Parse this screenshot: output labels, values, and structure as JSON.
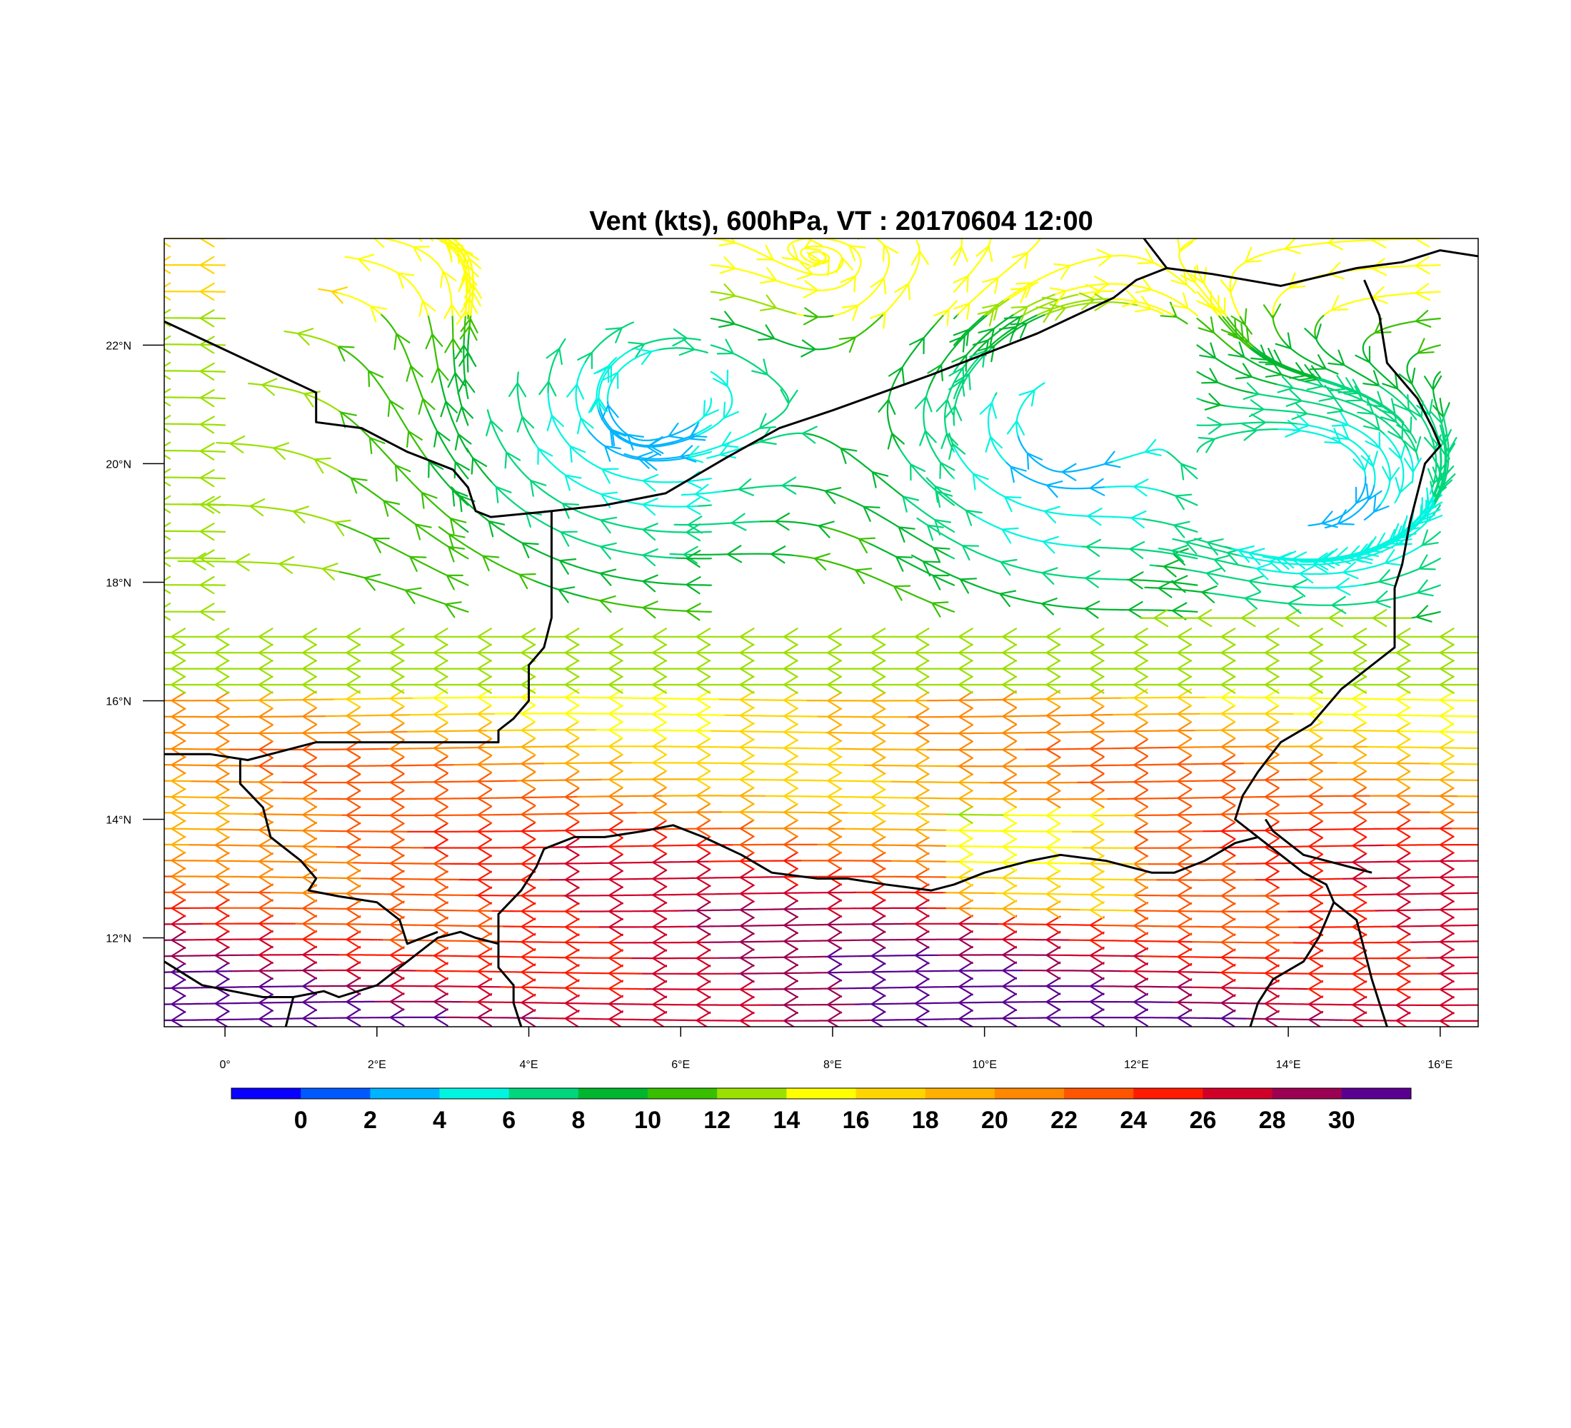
{
  "map": {
    "title": "Vent (kts), 600hPa, VT : 20170604  12:00",
    "lon_range": [
      -0.8,
      16.5
    ],
    "lat_range": [
      10.5,
      23.8
    ],
    "lon_ticks": [
      {
        "value": 0,
        "label": "0°"
      },
      {
        "value": 2,
        "label": "2°E"
      },
      {
        "value": 4,
        "label": "4°E"
      },
      {
        "value": 6,
        "label": "6°E"
      },
      {
        "value": 8,
        "label": "8°E"
      },
      {
        "value": 10,
        "label": "10°E"
      },
      {
        "value": 12,
        "label": "12°E"
      },
      {
        "value": 14,
        "label": "14°E"
      },
      {
        "value": 16,
        "label": "16°E"
      }
    ],
    "lat_ticks": [
      {
        "value": 12,
        "label": "12°N"
      },
      {
        "value": 14,
        "label": "14°N"
      },
      {
        "value": 16,
        "label": "16°N"
      },
      {
        "value": 18,
        "label": "18°N"
      },
      {
        "value": 20,
        "label": "20°N"
      },
      {
        "value": 22,
        "label": "22°N"
      }
    ],
    "colorbar": {
      "colors": [
        "#0a00ff",
        "#0059ff",
        "#00b4ff",
        "#00f5e0",
        "#00d67c",
        "#00b62e",
        "#38c000",
        "#9ae000",
        "#ffff00",
        "#ffd500",
        "#ffb000",
        "#ff8800",
        "#ff5500",
        "#ff1a00",
        "#d10029",
        "#9c0052",
        "#5a0090"
      ],
      "labels": [
        "0",
        "2",
        "4",
        "6",
        "8",
        "10",
        "12",
        "14",
        "16",
        "18",
        "20",
        "22",
        "24",
        "26",
        "28",
        "30"
      ]
    },
    "borders": [
      [
        [
          -0.8,
          22.4
        ],
        [
          1.2,
          21.2
        ],
        [
          1.2,
          20.7
        ],
        [
          1.8,
          20.6
        ],
        [
          2.4,
          20.2
        ],
        [
          3.0,
          19.9
        ],
        [
          3.2,
          19.6
        ],
        [
          3.3,
          19.2
        ],
        [
          3.5,
          19.1
        ],
        [
          4.3,
          19.2
        ],
        [
          5.0,
          19.3
        ],
        [
          5.8,
          19.5
        ],
        [
          6.6,
          20.1
        ],
        [
          7.3,
          20.6
        ],
        [
          8.0,
          20.9
        ],
        [
          9.3,
          21.5
        ],
        [
          10.7,
          22.2
        ],
        [
          11.2,
          22.5
        ],
        [
          11.7,
          22.8
        ],
        [
          12.0,
          23.1
        ],
        [
          12.4,
          23.3
        ]
      ],
      [
        [
          12.4,
          23.3
        ],
        [
          12.1,
          23.8
        ]
      ],
      [
        [
          12.4,
          23.3
        ],
        [
          13.0,
          23.2
        ],
        [
          13.9,
          23.0
        ],
        [
          14.9,
          23.3
        ],
        [
          15.5,
          23.4
        ],
        [
          16.0,
          23.6
        ],
        [
          16.5,
          23.5
        ]
      ],
      [
        [
          15.0,
          23.1
        ],
        [
          15.2,
          22.5
        ],
        [
          15.3,
          21.7
        ],
        [
          15.7,
          21.1
        ],
        [
          15.9,
          20.6
        ],
        [
          16.0,
          20.3
        ],
        [
          15.8,
          20.0
        ],
        [
          15.7,
          19.5
        ],
        [
          15.6,
          19.0
        ],
        [
          15.5,
          18.3
        ],
        [
          15.4,
          17.9
        ],
        [
          15.4,
          17.3
        ],
        [
          15.4,
          16.9
        ],
        [
          14.7,
          16.2
        ],
        [
          14.3,
          15.6
        ],
        [
          13.9,
          15.3
        ],
        [
          13.6,
          14.8
        ],
        [
          13.4,
          14.4
        ],
        [
          13.3,
          14.0
        ],
        [
          13.6,
          13.7
        ]
      ],
      [
        [
          4.3,
          19.2
        ],
        [
          4.3,
          18.6
        ],
        [
          4.3,
          18.0
        ],
        [
          4.3,
          17.4
        ],
        [
          4.2,
          16.9
        ],
        [
          4.0,
          16.6
        ],
        [
          4.0,
          16.0
        ],
        [
          3.8,
          15.7
        ],
        [
          3.6,
          15.5
        ],
        [
          3.6,
          15.3
        ],
        [
          2.2,
          15.3
        ],
        [
          1.2,
          15.3
        ],
        [
          0.6,
          15.1
        ],
        [
          0.3,
          15.0
        ],
        [
          -0.2,
          15.1
        ],
        [
          -0.8,
          15.1
        ]
      ],
      [
        [
          -0.8,
          11.6
        ],
        [
          -0.3,
          11.2
        ],
        [
          0.1,
          11.1
        ],
        [
          0.5,
          11.0
        ],
        [
          0.9,
          11.0
        ],
        [
          1.3,
          11.1
        ],
        [
          1.5,
          11.0
        ],
        [
          2.0,
          11.2
        ],
        [
          2.4,
          11.6
        ],
        [
          2.8,
          12.0
        ],
        [
          3.1,
          12.1
        ],
        [
          3.3,
          12.0
        ],
        [
          3.6,
          11.9
        ],
        [
          3.6,
          11.5
        ],
        [
          3.8,
          11.2
        ],
        [
          3.8,
          10.9
        ],
        [
          3.9,
          10.5
        ]
      ],
      [
        [
          0.2,
          15.0
        ],
        [
          0.2,
          14.6
        ],
        [
          0.5,
          14.2
        ],
        [
          0.6,
          13.7
        ],
        [
          1.0,
          13.3
        ],
        [
          1.2,
          13.0
        ],
        [
          1.1,
          12.8
        ],
        [
          1.5,
          12.7
        ],
        [
          2.0,
          12.6
        ],
        [
          2.3,
          12.3
        ],
        [
          2.4,
          11.9
        ],
        [
          2.8,
          12.1
        ]
      ],
      [
        [
          3.6,
          11.9
        ],
        [
          3.6,
          12.4
        ],
        [
          3.9,
          12.8
        ],
        [
          4.1,
          13.2
        ],
        [
          4.2,
          13.5
        ],
        [
          4.6,
          13.7
        ],
        [
          5.0,
          13.7
        ],
        [
          5.5,
          13.8
        ],
        [
          5.9,
          13.9
        ],
        [
          6.3,
          13.7
        ],
        [
          6.8,
          13.4
        ],
        [
          7.2,
          13.1
        ],
        [
          7.8,
          13.0
        ],
        [
          8.2,
          13.0
        ],
        [
          8.7,
          12.9
        ],
        [
          9.3,
          12.8
        ],
        [
          9.6,
          12.9
        ],
        [
          10.0,
          13.1
        ],
        [
          10.6,
          13.3
        ],
        [
          11.0,
          13.4
        ],
        [
          11.6,
          13.3
        ],
        [
          12.2,
          13.1
        ],
        [
          12.5,
          13.1
        ],
        [
          12.9,
          13.3
        ],
        [
          13.3,
          13.6
        ],
        [
          13.6,
          13.7
        ]
      ],
      [
        [
          13.6,
          13.7
        ],
        [
          13.9,
          13.4
        ],
        [
          14.2,
          13.1
        ],
        [
          14.5,
          12.9
        ],
        [
          14.6,
          12.6
        ],
        [
          14.5,
          12.3
        ],
        [
          14.4,
          12.0
        ],
        [
          14.2,
          11.6
        ],
        [
          13.8,
          11.3
        ],
        [
          13.6,
          10.9
        ],
        [
          13.5,
          10.5
        ]
      ],
      [
        [
          14.6,
          12.6
        ],
        [
          14.9,
          12.3
        ],
        [
          15.0,
          11.8
        ],
        [
          15.1,
          11.3
        ],
        [
          15.2,
          10.9
        ],
        [
          15.3,
          10.5
        ]
      ],
      [
        [
          13.7,
          14.0
        ],
        [
          13.8,
          13.8
        ],
        [
          14.0,
          13.6
        ],
        [
          14.2,
          13.4
        ],
        [
          14.5,
          13.3
        ],
        [
          14.8,
          13.2
        ],
        [
          15.1,
          13.1
        ]
      ],
      [
        [
          0.9,
          11.0
        ],
        [
          0.8,
          10.5
        ]
      ]
    ]
  }
}
